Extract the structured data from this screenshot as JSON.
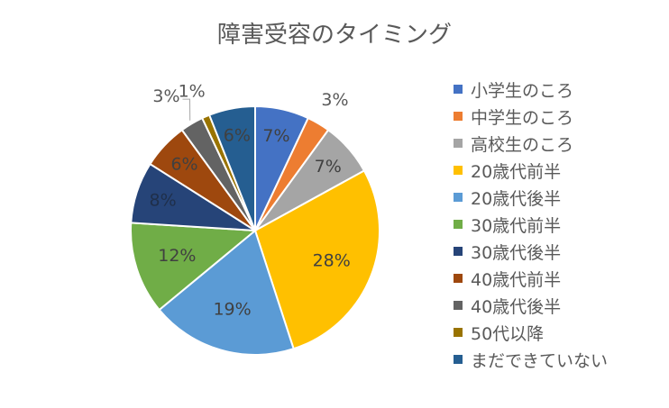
{
  "chart_data": {
    "type": "pie",
    "title": "障害受容のタイミング",
    "slices": [
      {
        "label": "小学生のころ",
        "value": 7,
        "color": "#4472C4",
        "data_label": "7%"
      },
      {
        "label": "中学生のころ",
        "value": 3,
        "color": "#ED7D31",
        "data_label": "3%"
      },
      {
        "label": "高校生のころ",
        "value": 7,
        "color": "#A5A5A5",
        "data_label": "7%"
      },
      {
        "label": "20歳代前半",
        "value": 28,
        "color": "#FFC000",
        "data_label": "28%"
      },
      {
        "label": "20歳代後半",
        "value": 19,
        "color": "#5B9BD5",
        "data_label": "19%"
      },
      {
        "label": "30歳代前半",
        "value": 12,
        "color": "#70AD47",
        "data_label": "12%"
      },
      {
        "label": "30歳代後半",
        "value": 8,
        "color": "#264478",
        "data_label": "8%"
      },
      {
        "label": "40歳代前半",
        "value": 6,
        "color": "#9E480E",
        "data_label": "6%"
      },
      {
        "label": "40歳代後半",
        "value": 3,
        "color": "#636363",
        "data_label": "3%"
      },
      {
        "label": "50代以降",
        "value": 1,
        "color": "#997300",
        "data_label": "1%"
      },
      {
        "label": "まだできていない",
        "value": 6,
        "color": "#255E91",
        "data_label": "6%"
      }
    ],
    "legend_position": "right"
  }
}
